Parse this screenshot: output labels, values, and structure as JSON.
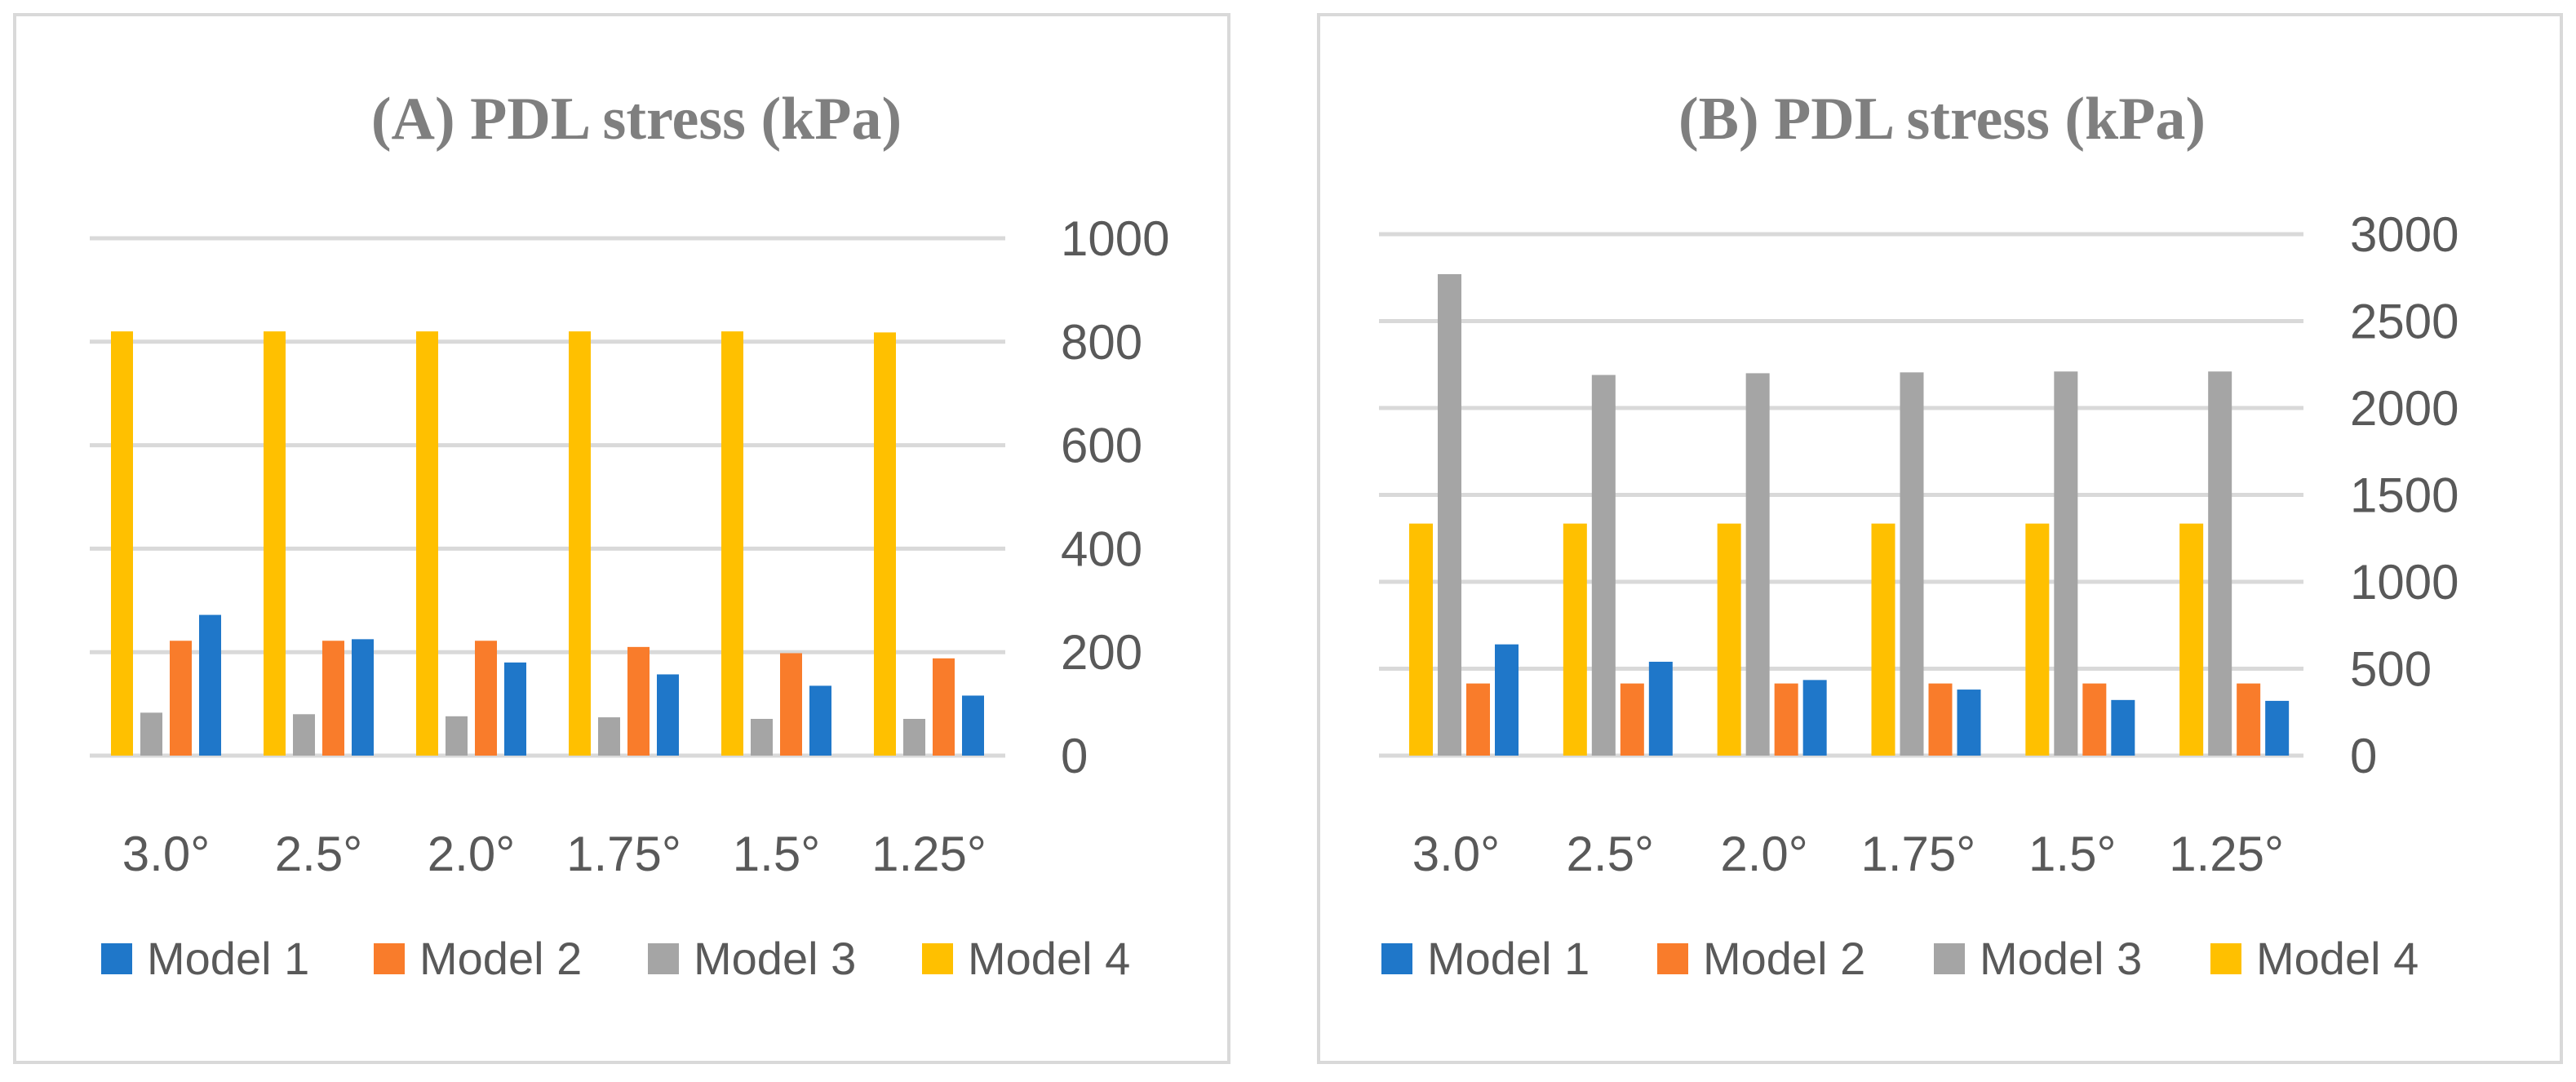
{
  "chart_data": [
    {
      "type": "bar",
      "title": "(A) PDL stress (kPa)",
      "categories": [
        "3.0°",
        "2.5°",
        "2.0°",
        "1.75°",
        "1.5°",
        "1.25°"
      ],
      "series": [
        {
          "name": "Model 1",
          "color": "#1f77c9",
          "values": [
            272,
            225,
            180,
            157,
            135,
            116
          ]
        },
        {
          "name": "Model 2",
          "color": "#f97c2b",
          "values": [
            222,
            222,
            222,
            210,
            198,
            188
          ]
        },
        {
          "name": "Model 3",
          "color": "#a5a5a5",
          "values": [
            83,
            80,
            76,
            74,
            71,
            71
          ]
        },
        {
          "name": "Model 4",
          "color": "#ffc000",
          "values": [
            820,
            820,
            820,
            820,
            820,
            818
          ]
        }
      ],
      "ylim": [
        0,
        1000
      ],
      "yticks": [
        "0",
        "200",
        "400",
        "600",
        "800",
        "1000"
      ],
      "xlabel": "",
      "ylabel": "",
      "grid": true,
      "y_axis_side": "right",
      "legend": "bottom"
    },
    {
      "type": "bar",
      "title": "(B) PDL stress (kPa)",
      "categories": [
        "3.0°",
        "2.5°",
        "2.0°",
        "1.75°",
        "1.5°",
        "1.25°"
      ],
      "series": [
        {
          "name": "Model 1",
          "color": "#1f77c9",
          "values": [
            640,
            540,
            435,
            380,
            320,
            315
          ]
        },
        {
          "name": "Model 2",
          "color": "#f97c2b",
          "values": [
            415,
            415,
            415,
            415,
            415,
            415
          ]
        },
        {
          "name": "Model 3",
          "color": "#a5a5a5",
          "values": [
            2770,
            2190,
            2200,
            2205,
            2210,
            2210
          ]
        },
        {
          "name": "Model 4",
          "color": "#ffc000",
          "values": [
            1335,
            1335,
            1335,
            1335,
            1335,
            1335
          ]
        }
      ],
      "ylim": [
        0,
        3000
      ],
      "yticks": [
        "0",
        "500",
        "1000",
        "1500",
        "2000",
        "2500",
        "3000"
      ],
      "xlabel": "",
      "ylabel": "",
      "grid": true,
      "y_axis_side": "right",
      "legend": "bottom"
    }
  ]
}
